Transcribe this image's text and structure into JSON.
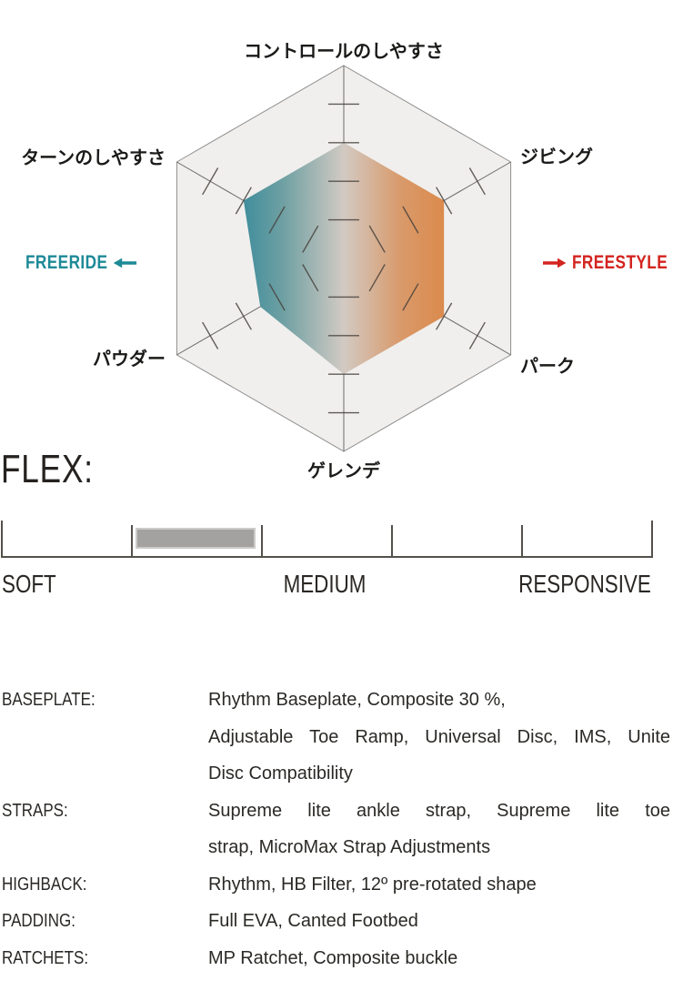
{
  "chart_data": [
    {
      "type": "radar",
      "shape": "hexagon",
      "axes": [
        "コントロールのしやすさ",
        "ジビング",
        "パーク",
        "ゲレンデ",
        "パウダー",
        "ターンのしやすさ"
      ],
      "values": [
        3,
        3,
        3,
        3,
        2.5,
        3
      ],
      "scale": {
        "min": 0,
        "max": 5,
        "tick_values": [
          1,
          2,
          3,
          4
        ]
      },
      "left_annotation": {
        "label": "FREERIDE",
        "icon": "arrow-left-icon",
        "color": "#1E8A97"
      },
      "right_annotation": {
        "label": "FREESTYLE",
        "icon": "arrow-right-icon",
        "color": "#D3241F"
      },
      "grid_fill": "#F0EFED",
      "grid_stroke": "#8F8F8F",
      "axis_stroke": "#6B6B6B",
      "tick_stroke": "#48423C",
      "fill_gradient_stops": [
        {
          "offset": 0,
          "color": "#3F8D9C"
        },
        {
          "offset": 0.2,
          "color": "#6FA0A3"
        },
        {
          "offset": 0.5,
          "color": "#D2CAC3"
        },
        {
          "offset": 0.78,
          "color": "#D99A6B"
        },
        {
          "offset": 1,
          "color": "#DB8A4C"
        }
      ],
      "legend_position": "sides"
    },
    {
      "type": "gauge",
      "title": "FLEX:",
      "scale_labels": [
        "SOFT",
        "MEDIUM",
        "RESPONSIVE"
      ],
      "intervals": 5,
      "bar": {
        "start_fraction": 0.205,
        "end_fraction": 0.39,
        "start_interval": 2,
        "end_interval": 3
      },
      "bar_color": "#A3A2A1"
    }
  ],
  "specs": {
    "rows": [
      {
        "label": "BASEPLATE:",
        "lines": [
          {
            "text": "Rhythm Baseplate, Composite 30 %,",
            "justify": false
          },
          {
            "text": "Adjustable Toe Ramp, Universal Disc, IMS, Unite",
            "justify": true
          },
          {
            "text": "Disc Compatibility",
            "justify": false
          }
        ]
      },
      {
        "label": "STRAPS:",
        "lines": [
          {
            "text": "Supreme lite ankle strap, Supreme lite toe",
            "justify": true
          },
          {
            "text": "strap, MicroMax Strap Adjustments",
            "justify": false
          }
        ]
      },
      {
        "label": "HIGHBACK:",
        "lines": [
          {
            "text": "Rhythm, HB Filter, 12º pre-rotated shape",
            "justify": false
          }
        ]
      },
      {
        "label": "PADDING:",
        "lines": [
          {
            "text": "Full EVA, Canted Footbed",
            "justify": false
          }
        ]
      },
      {
        "label": "RATCHETS:",
        "lines": [
          {
            "text": "MP Ratchet, Composite buckle",
            "justify": false
          }
        ]
      }
    ]
  }
}
